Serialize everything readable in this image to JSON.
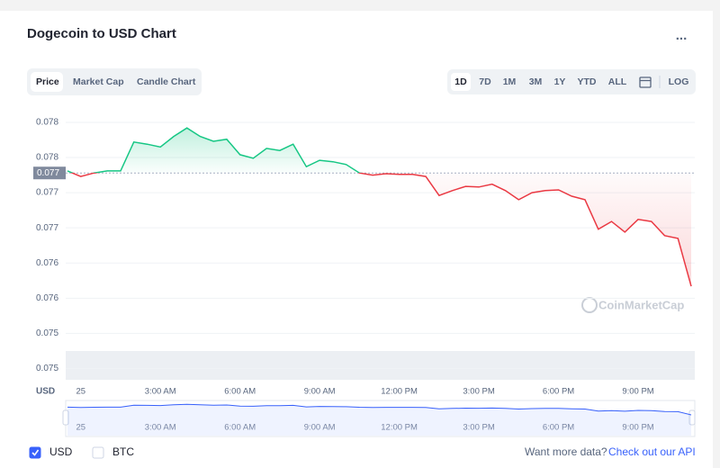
{
  "header": {
    "title": "Dogecoin to USD Chart",
    "menu": "..."
  },
  "tabs": [
    "Price",
    "Market Cap",
    "Candle Chart"
  ],
  "ranges": [
    "1D",
    "7D",
    "1M",
    "3M",
    "1Y",
    "YTD",
    "ALL",
    "LOG"
  ],
  "chart_data": {
    "type": "line",
    "y_label": "USD",
    "watermark": "CoinMarketCap",
    "categories": [
      null,
      "25",
      null,
      null,
      null,
      null,
      null,
      "3:00 AM",
      null,
      null,
      null,
      null,
      null,
      "6:00 AM",
      null,
      null,
      null,
      null,
      null,
      "9:00 AM",
      null,
      null,
      null,
      null,
      null,
      "12:00 PM",
      null,
      null,
      null,
      null,
      null,
      "3:00 PM",
      null,
      null,
      null,
      null,
      null,
      "6:00 PM",
      null,
      null,
      null,
      null,
      null,
      "9:00 PM",
      null,
      null,
      null,
      null
    ],
    "values": [
      0.07731,
      0.07723,
      0.07728,
      0.07731,
      0.07731,
      0.07772,
      0.07769,
      0.07765,
      0.0778,
      0.07792,
      0.0778,
      0.07773,
      0.07776,
      0.07754,
      0.07749,
      0.07763,
      0.0776,
      0.07769,
      0.07737,
      0.07746,
      0.07744,
      0.0774,
      0.07728,
      0.07725,
      0.07727,
      0.07726,
      0.07726,
      0.07723,
      0.07696,
      0.07703,
      0.07709,
      0.07708,
      0.07712,
      0.07703,
      0.0769,
      0.077,
      0.07703,
      0.07704,
      0.07695,
      0.0769,
      0.07648,
      0.07659,
      0.07644,
      0.07662,
      0.07659,
      0.07639,
      0.07635,
      0.07567
    ],
    "reference": {
      "value": 0.07728,
      "label": "0.077"
    },
    "up_color": "#16c784",
    "down_color": "#ea3943",
    "ylim": [
      0.07434,
      0.07814
    ],
    "yticks": [
      {
        "value": 0.078,
        "label": "0.078"
      },
      {
        "value": 0.0775,
        "label": "0.078"
      },
      {
        "value": 0.077,
        "label": "0.077"
      },
      {
        "value": 0.0765,
        "label": "0.077"
      },
      {
        "value": 0.076,
        "label": "0.076"
      },
      {
        "value": 0.0755,
        "label": "0.076"
      },
      {
        "value": 0.075,
        "label": "0.075"
      },
      {
        "value": 0.0745,
        "label": "0.075"
      }
    ],
    "grid": true
  },
  "footer": {
    "checkboxes": [
      {
        "label": "USD",
        "checked": true
      },
      {
        "label": "BTC",
        "checked": false
      }
    ],
    "prompt": "Want more data?",
    "link": "Check out our API"
  }
}
